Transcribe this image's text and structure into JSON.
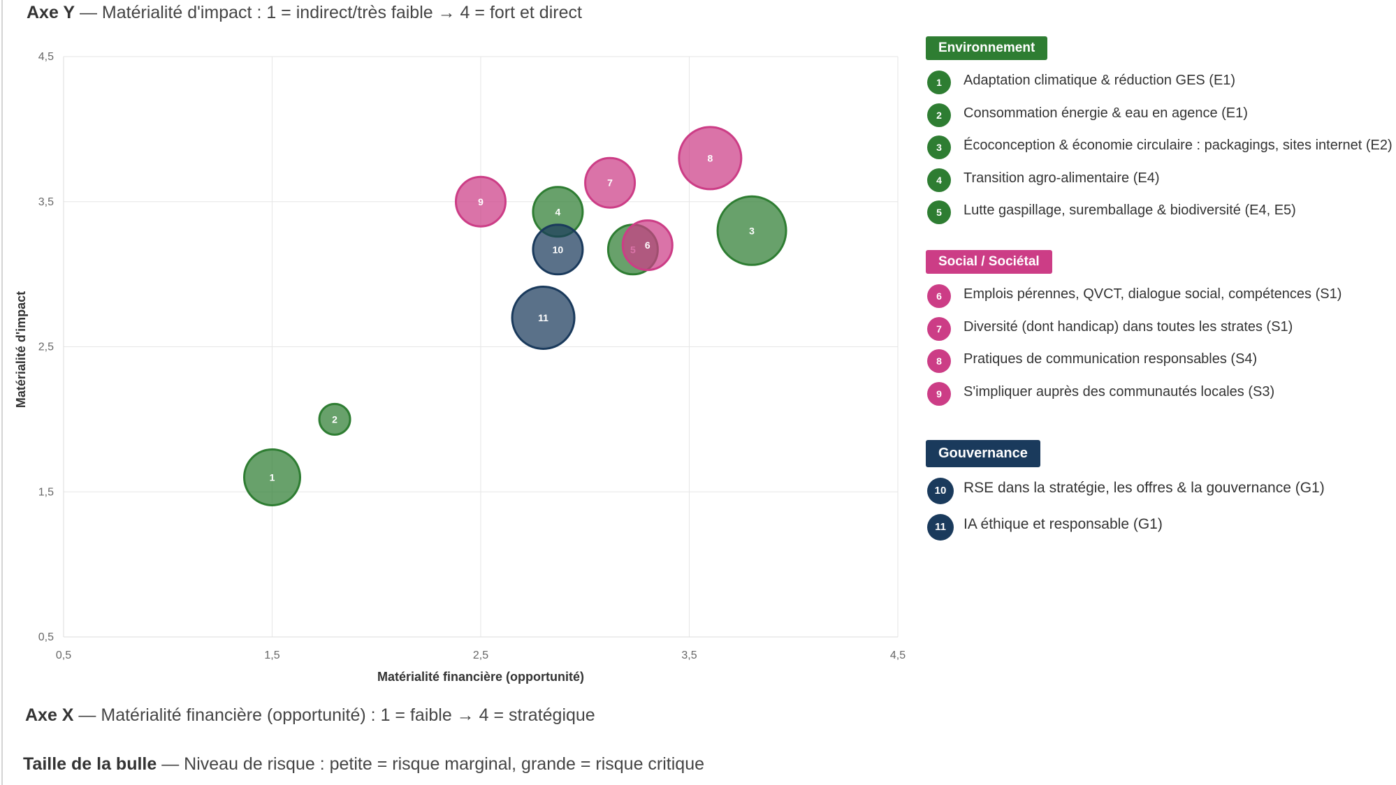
{
  "colors": {
    "environnement": "#2e7d32",
    "social": "#cc3d86",
    "gouvernance": "#1a3a5c"
  },
  "notes": {
    "axis_y_bold": "Axe Y",
    "axis_y_text": " — Matérialité d'impact : 1 = indirect/très faible → 4 = fort et direct",
    "axis_x_bold": "Axe X",
    "axis_x_text": " — Matérialité financière (opportunité) : 1 = faible → 4 = stratégique",
    "size_bold": "Taille de la bulle",
    "size_text": " — Niveau de risque : petite = risque marginal, grande = risque critique"
  },
  "chart_data": {
    "type": "scatter",
    "subtype": "bubble",
    "xlabel": "Matérialité financière (opportunité)",
    "ylabel": "Matérialité d'impact",
    "xlim": [
      0.5,
      4.5
    ],
    "ylim": [
      0.5,
      4.5
    ],
    "xticks": [
      "0,5",
      "1,5",
      "2,5",
      "3,5",
      "4,5"
    ],
    "yticks": [
      "0,5",
      "1,5",
      "2,5",
      "3,5",
      "4,5"
    ],
    "tick_values": [
      0.5,
      1.5,
      2.5,
      3.5,
      4.5
    ],
    "grid": true,
    "points": [
      {
        "label": "1",
        "group": "environnement",
        "x": 1.5,
        "y": 1.6,
        "size": 3
      },
      {
        "label": "2",
        "group": "environnement",
        "x": 1.8,
        "y": 2.0,
        "size": 1
      },
      {
        "label": "3",
        "group": "environnement",
        "x": 3.8,
        "y": 3.3,
        "size": 4
      },
      {
        "label": "4",
        "group": "environnement",
        "x": 2.87,
        "y": 3.43,
        "size": 2.5
      },
      {
        "label": "5",
        "group": "environnement",
        "x": 3.23,
        "y": 3.17,
        "size": 2.5
      },
      {
        "label": "6",
        "group": "social",
        "x": 3.3,
        "y": 3.2,
        "size": 2.5
      },
      {
        "label": "7",
        "group": "social",
        "x": 3.12,
        "y": 3.63,
        "size": 2.5
      },
      {
        "label": "8",
        "group": "social",
        "x": 3.6,
        "y": 3.8,
        "size": 3.5
      },
      {
        "label": "9",
        "group": "social",
        "x": 2.5,
        "y": 3.5,
        "size": 2.5
      },
      {
        "label": "10",
        "group": "gouvernance",
        "x": 2.87,
        "y": 3.17,
        "size": 2.5
      },
      {
        "label": "11",
        "group": "gouvernance",
        "x": 2.8,
        "y": 2.7,
        "size": 3.5
      }
    ]
  },
  "legend": {
    "groups": [
      {
        "key": "environnement",
        "title": "Environnement",
        "items": [
          {
            "num": "1",
            "text": "Adaptation climatique & réduction GES (E1)"
          },
          {
            "num": "2",
            "text": "Consommation énergie & eau en agence (E1)"
          },
          {
            "num": "3",
            "text": "Écoconception & économie circulaire : packagings, sites internet (E2)"
          },
          {
            "num": "4",
            "text": "Transition agro-alimentaire (E4)"
          },
          {
            "num": "5",
            "text": "Lutte gaspillage, suremballage & biodiversité (E4, E5)"
          }
        ]
      },
      {
        "key": "social",
        "title": "Social / Sociétal",
        "items": [
          {
            "num": "6",
            "text": "Emplois pérennes, QVCT, dialogue social, compétences (S1)"
          },
          {
            "num": "7",
            "text": "Diversité (dont handicap) dans toutes les strates (S1)"
          },
          {
            "num": "8",
            "text": "Pratiques de communication responsables (S4)"
          },
          {
            "num": "9",
            "text": "S'impliquer auprès des communautés locales (S3)"
          }
        ]
      },
      {
        "key": "gouvernance",
        "title": "Gouvernance",
        "items": [
          {
            "num": "10",
            "text": "RSE dans la stratégie, les offres & la gouvernance (G1)"
          },
          {
            "num": "11",
            "text": "IA éthique et responsable (G1)"
          }
        ]
      }
    ]
  }
}
